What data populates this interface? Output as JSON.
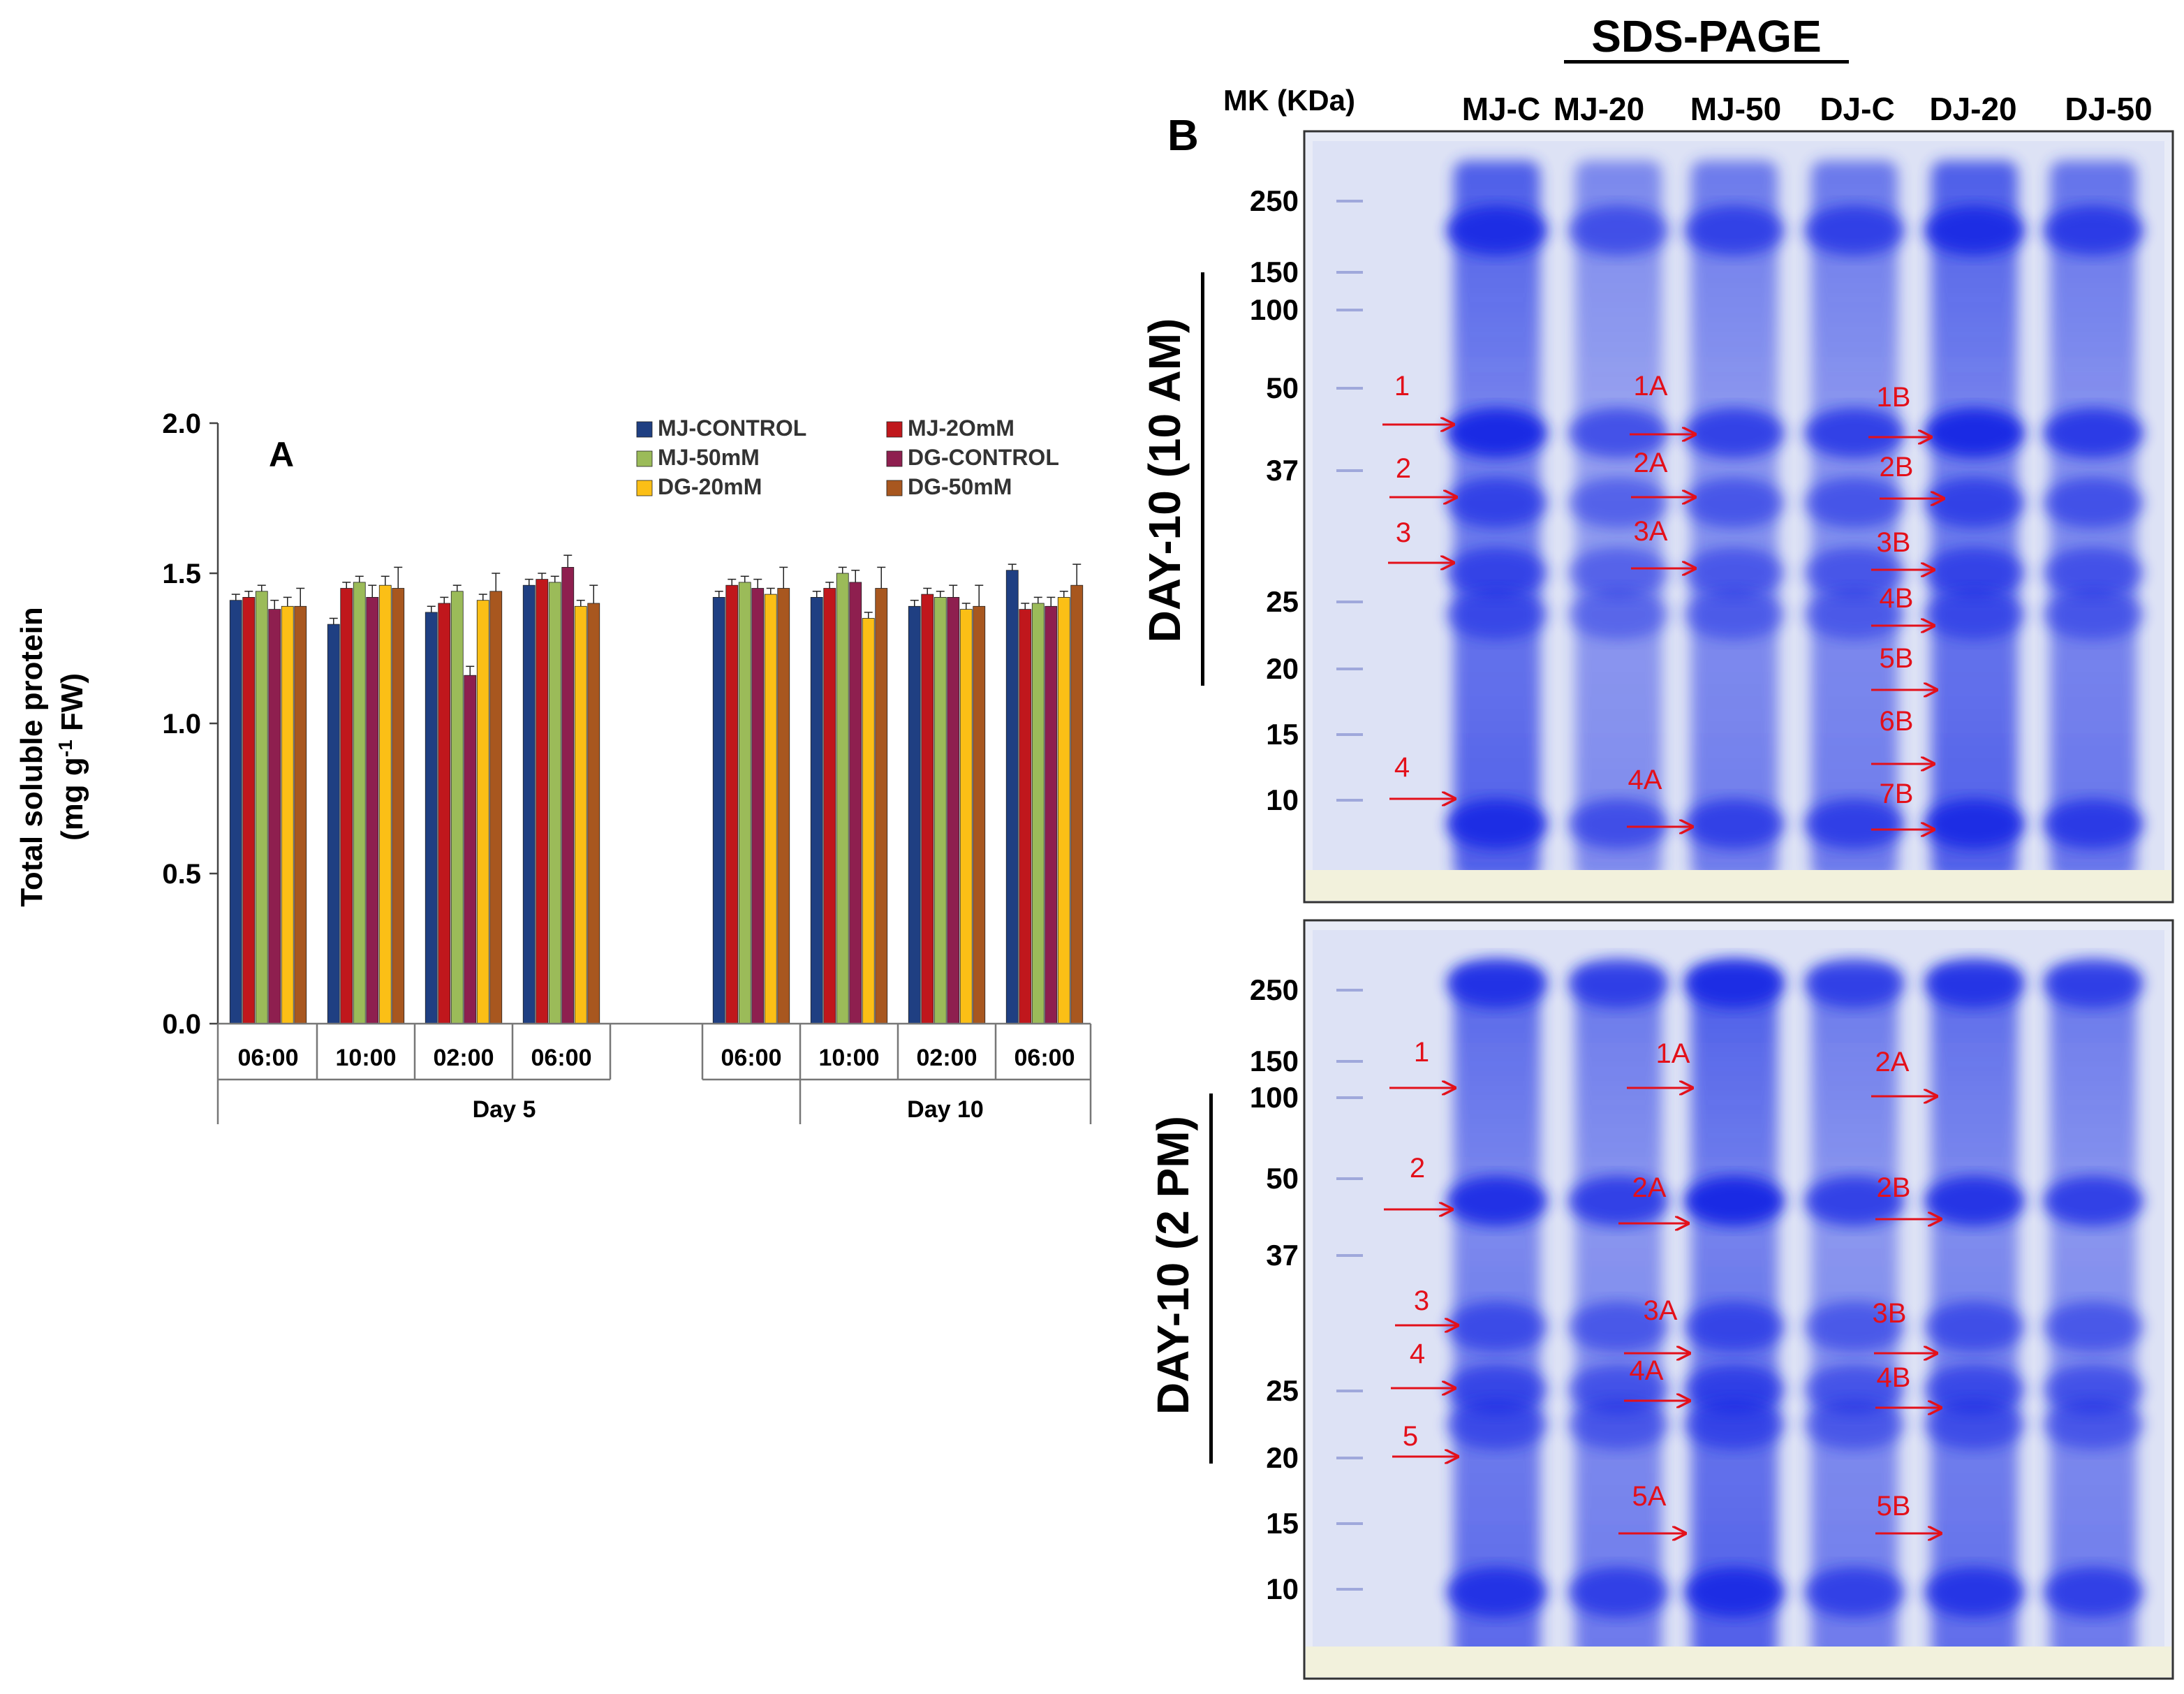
{
  "panel_a": {
    "label": "A",
    "chart_data": {
      "type": "bar",
      "ylabel_line1": "Total soluble protein",
      "ylabel_line2_pre": "(mg g",
      "ylabel_line2_sup": "-1",
      "ylabel_line2_post": " FW)",
      "ylim": [
        0,
        2.0
      ],
      "yticks": [
        "0.0",
        "0.5",
        "1.0",
        "1.5",
        "2.0"
      ],
      "groups": [
        {
          "name": "Day 5",
          "categories": [
            "06:00",
            "10:00",
            "02:00",
            "06:00"
          ]
        },
        {
          "name": "Day 10",
          "categories": [
            "06:00",
            "10:00",
            "02:00",
            "06:00"
          ]
        }
      ],
      "series": [
        {
          "name": "MJ-CONTROL",
          "color": "#1f3f82",
          "values": [
            1.41,
            1.33,
            1.37,
            1.46,
            1.42,
            1.42,
            1.39,
            1.51
          ],
          "errors": [
            0.02,
            0.02,
            0.02,
            0.02,
            0.02,
            0.02,
            0.02,
            0.02
          ]
        },
        {
          "name": "MJ-2OmM",
          "color": "#c0171c",
          "values": [
            1.42,
            1.45,
            1.4,
            1.48,
            1.46,
            1.45,
            1.43,
            1.38
          ],
          "errors": [
            0.02,
            0.02,
            0.02,
            0.02,
            0.02,
            0.02,
            0.02,
            0.02
          ]
        },
        {
          "name": "MJ-50mM",
          "color": "#9bbb59",
          "values": [
            1.44,
            1.47,
            1.44,
            1.47,
            1.47,
            1.5,
            1.42,
            1.4
          ],
          "errors": [
            0.02,
            0.02,
            0.02,
            0.02,
            0.02,
            0.02,
            0.02,
            0.02
          ]
        },
        {
          "name": "DG-CONTROL",
          "color": "#8e1f4f",
          "values": [
            1.38,
            1.42,
            1.16,
            1.52,
            1.45,
            1.47,
            1.42,
            1.39
          ],
          "errors": [
            0.03,
            0.04,
            0.03,
            0.04,
            0.03,
            0.04,
            0.04,
            0.03
          ]
        },
        {
          "name": "DG-20mM",
          "color": "#fbbf16",
          "values": [
            1.39,
            1.46,
            1.41,
            1.39,
            1.43,
            1.35,
            1.38,
            1.42
          ],
          "errors": [
            0.03,
            0.03,
            0.02,
            0.02,
            0.02,
            0.02,
            0.02,
            0.02
          ]
        },
        {
          "name": "DG-50mM",
          "color": "#a8571f",
          "values": [
            1.39,
            1.45,
            1.44,
            1.4,
            1.45,
            1.45,
            1.39,
            1.46
          ],
          "errors": [
            0.06,
            0.07,
            0.06,
            0.06,
            0.07,
            0.07,
            0.07,
            0.07
          ]
        }
      ]
    }
  },
  "panel_b": {
    "label": "B",
    "title": "SDS-PAGE",
    "marker_header": "MK (KDa)",
    "lanes": [
      "MJ-C",
      "MJ-20",
      "MJ-50",
      "DJ-C",
      "DJ-20",
      "DJ-50"
    ],
    "marker_sizes": [
      "250",
      "150",
      "100",
      "50",
      "37",
      "25",
      "20",
      "15",
      "10"
    ],
    "gels": [
      {
        "title": "DAY-10 (10 AM)",
        "colors": {
          "band": "#1f33e8",
          "background": "#e9ecf7",
          "arrow": "#e3101a"
        },
        "labels": [
          "1",
          "2",
          "3",
          "4",
          "1A",
          "2A",
          "3A",
          "4A",
          "1B",
          "2B",
          "3B",
          "4B",
          "5B",
          "6B",
          "7B"
        ]
      },
      {
        "title": "DAY-10 (2 PM)",
        "colors": {
          "band": "#1f33e8",
          "background": "#e9ecf7",
          "arrow": "#e3101a"
        },
        "labels": [
          "1",
          "2",
          "3",
          "4",
          "5",
          "1A",
          "2A",
          "3A",
          "4A",
          "5A",
          "2A",
          "2B",
          "3B",
          "4B",
          "5B"
        ]
      }
    ]
  }
}
